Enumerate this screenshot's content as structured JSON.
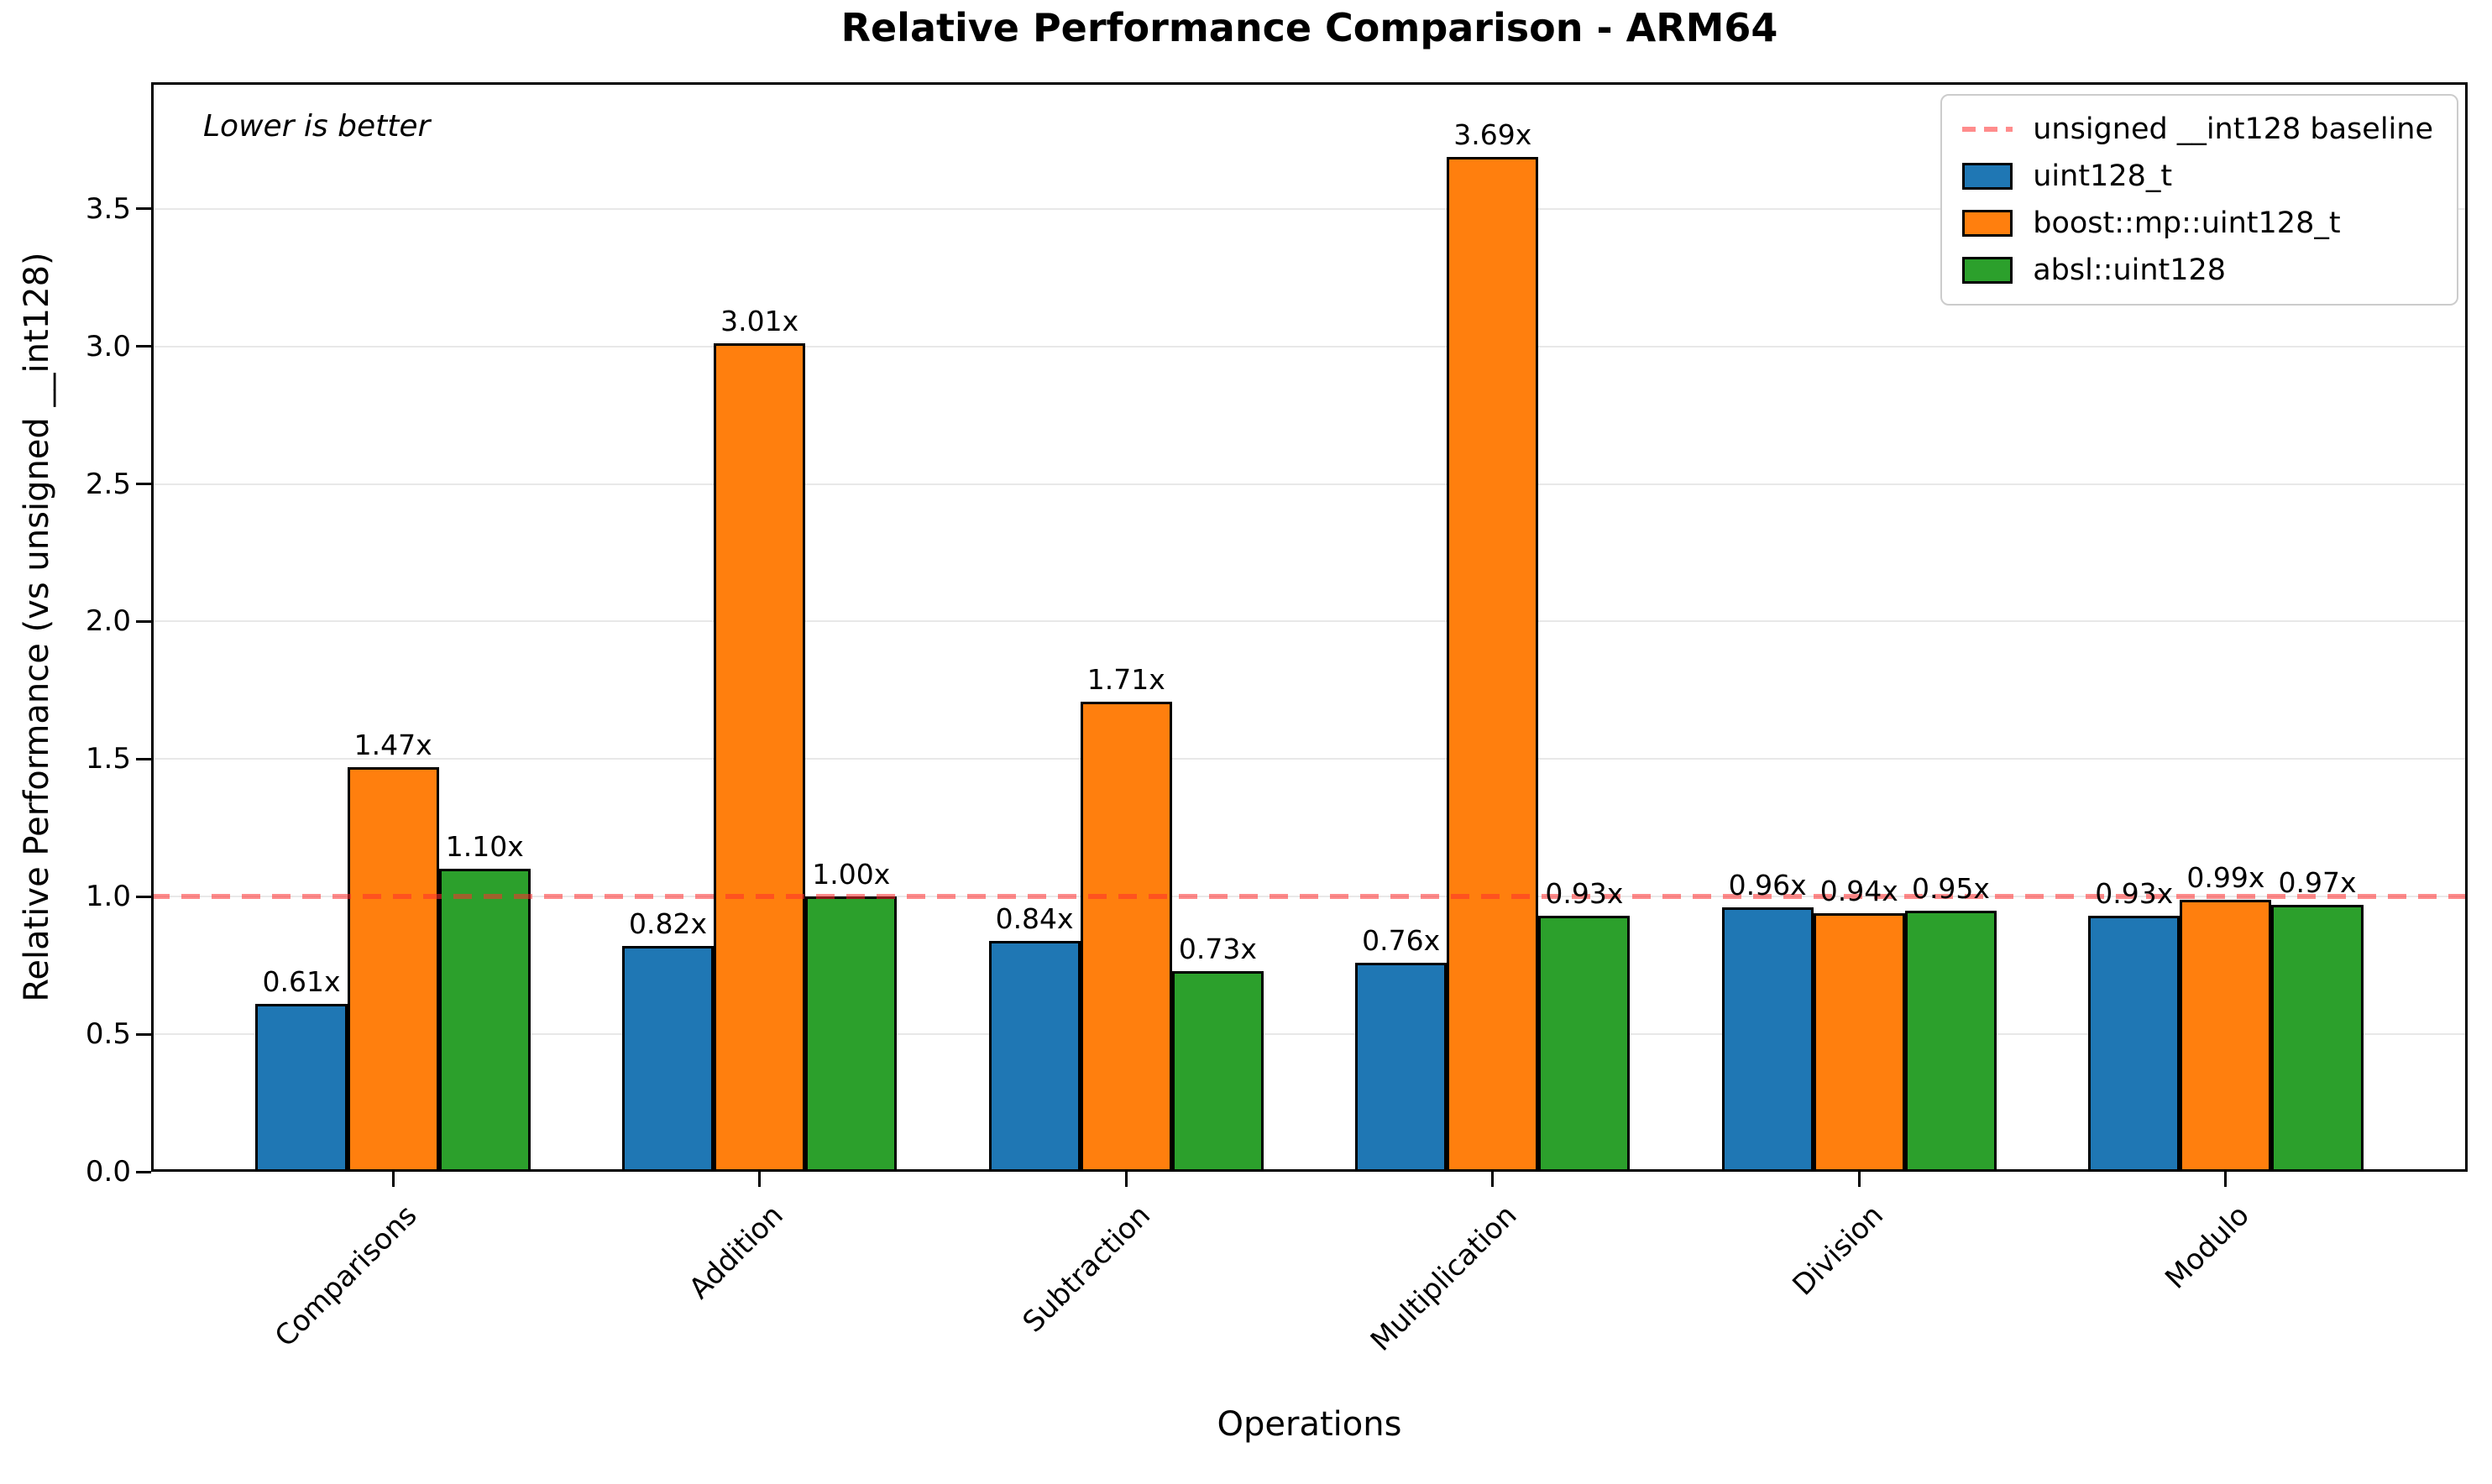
{
  "figure": {
    "title": "Relative Performance Comparison - ARM64",
    "annotation": "Lower is better",
    "xlabel": "Operations",
    "ylabel": "Relative Performance (vs unsigned __int128)"
  },
  "chart_data": {
    "type": "bar",
    "title": "Relative Performance Comparison - ARM64",
    "xlabel": "Operations",
    "ylabel": "Relative Performance (vs unsigned __int128)",
    "annotation": "Lower is better",
    "categories": [
      "Comparisons",
      "Addition",
      "Subtraction",
      "Multiplication",
      "Division",
      "Modulo"
    ],
    "series": [
      {
        "name": "uint128_t",
        "color": "#1f77b4",
        "values": [
          0.61,
          0.82,
          0.84,
          0.76,
          0.96,
          0.93
        ],
        "labels": [
          "0.61x",
          "0.82x",
          "0.84x",
          "0.76x",
          "0.96x",
          "0.93x"
        ]
      },
      {
        "name": "boost::mp::uint128_t",
        "color": "#ff7f0e",
        "values": [
          1.47,
          3.01,
          1.71,
          3.69,
          0.94,
          0.99
        ],
        "labels": [
          "1.47x",
          "3.01x",
          "1.71x",
          "3.69x",
          "0.94x",
          "0.99x"
        ]
      },
      {
        "name": "absl::uint128",
        "color": "#2ca02c",
        "values": [
          1.1,
          1.0,
          0.73,
          0.93,
          0.95,
          0.97
        ],
        "labels": [
          "1.10x",
          "1.00x",
          "0.73x",
          "0.93x",
          "0.95x",
          "0.97x"
        ]
      }
    ],
    "baseline": {
      "label": "unsigned __int128 baseline",
      "value": 1.0,
      "color": "#ff2d2d",
      "style": "dashed"
    },
    "y_tick_values": [
      0.0,
      0.5,
      1.0,
      1.5,
      2.0,
      2.5,
      3.0,
      3.5
    ],
    "y_tick_labels": [
      "0.0",
      "0.5",
      "1.0",
      "1.5",
      "2.0",
      "2.5",
      "3.0",
      "3.5"
    ],
    "ylim": [
      0,
      3.96
    ],
    "bar_width": 0.25,
    "grid": "horizontal",
    "legend_position": "upper right"
  }
}
